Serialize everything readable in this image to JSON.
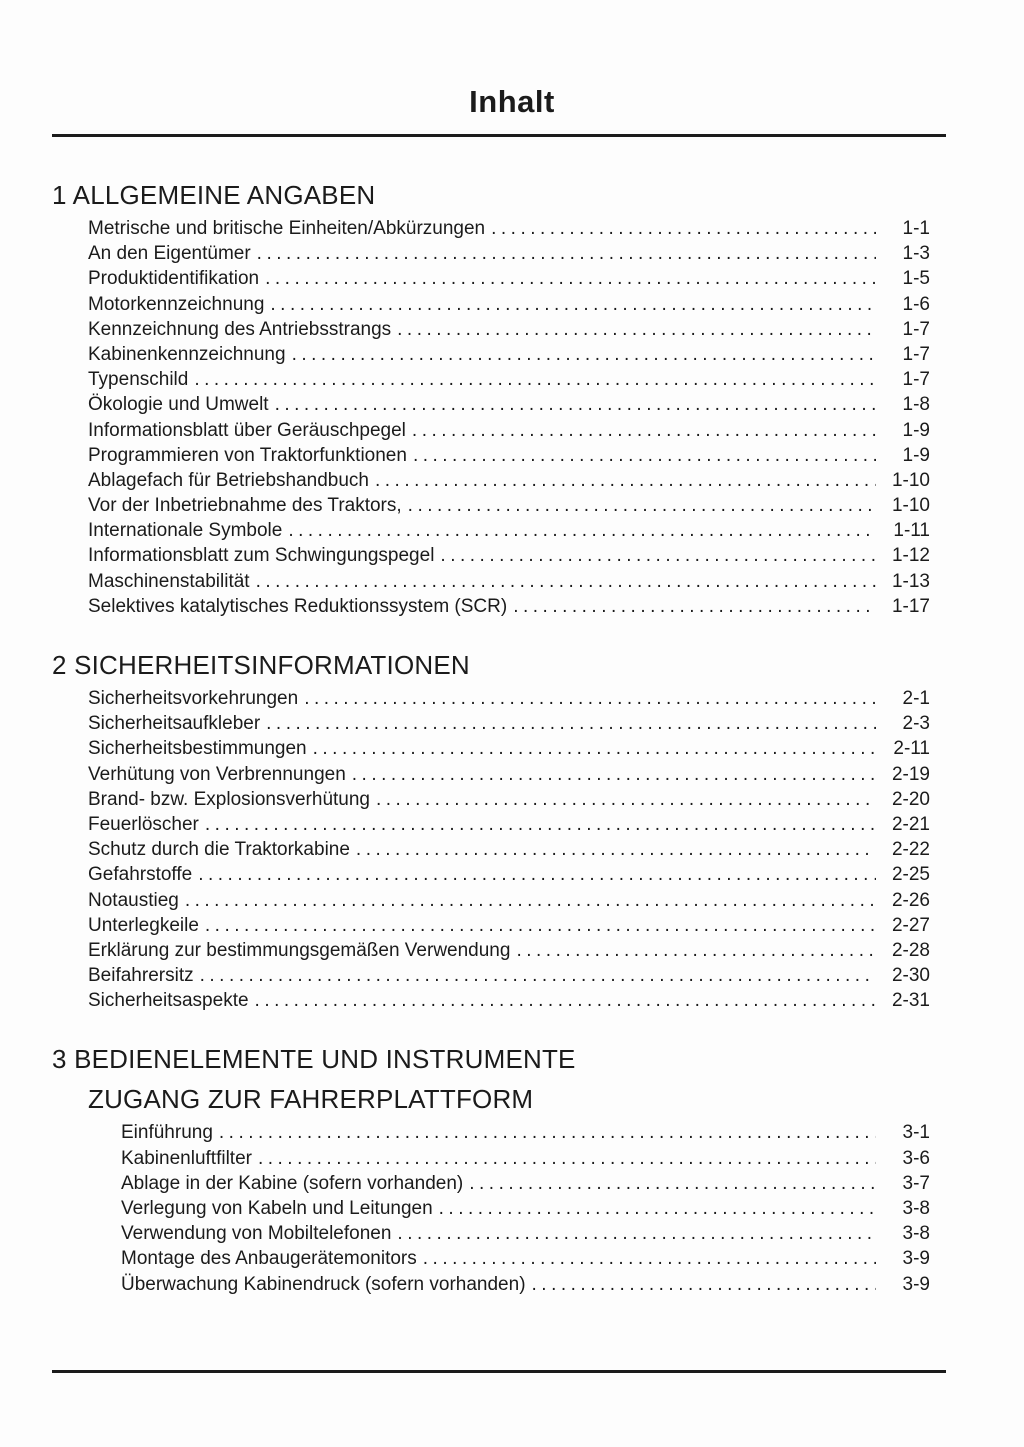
{
  "page": {
    "title": "Inhalt"
  },
  "colors": {
    "ink": "#1b1b1b",
    "paper": "#fdfdfd"
  },
  "sections": [
    {
      "heading": "1 ALLGEMEINE ANGABEN",
      "entries": [
        {
          "label": "Metrische und britische Einheiten/Abkürzungen",
          "page": "1-1"
        },
        {
          "label": "An den Eigentümer",
          "page": "1-3"
        },
        {
          "label": "Produktidentifikation",
          "page": "1-5"
        },
        {
          "label": "Motorkennzeichnung",
          "page": "1-6"
        },
        {
          "label": "Kennzeichnung des Antriebsstrangs",
          "page": "1-7"
        },
        {
          "label": "Kabinenkennzeichnung",
          "page": "1-7"
        },
        {
          "label": "Typenschild",
          "page": "1-7"
        },
        {
          "label": "Ökologie und Umwelt",
          "page": "1-8"
        },
        {
          "label": "Informationsblatt über Geräuschpegel",
          "page": "1-9"
        },
        {
          "label": "Programmieren von Traktorfunktionen",
          "page": "1-9"
        },
        {
          "label": "Ablagefach für Betriebshandbuch",
          "page": "1-10"
        },
        {
          "label": "Vor der Inbetriebnahme des Traktors,",
          "page": "1-10"
        },
        {
          "label": "Internationale Symbole",
          "page": "1-11"
        },
        {
          "label": "Informationsblatt zum Schwingungspegel",
          "page": "1-12"
        },
        {
          "label": "Maschinenstabilität",
          "page": "1-13"
        },
        {
          "label": "Selektives katalytisches Reduktionssystem (SCR)",
          "page": "1-17"
        }
      ]
    },
    {
      "heading": "2 SICHERHEITSINFORMATIONEN",
      "entries": [
        {
          "label": "Sicherheitsvorkehrungen",
          "page": "2-1"
        },
        {
          "label": "Sicherheitsaufkleber",
          "page": "2-3"
        },
        {
          "label": "Sicherheitsbestimmungen",
          "page": "2-11"
        },
        {
          "label": "Verhütung von Verbrennungen",
          "page": "2-19"
        },
        {
          "label": "Brand- bzw. Explosionsverhütung",
          "page": "2-20"
        },
        {
          "label": "Feuerlöscher",
          "page": "2-21"
        },
        {
          "label": "Schutz durch die Traktorkabine",
          "page": "2-22"
        },
        {
          "label": "Gefahrstoffe",
          "page": "2-25"
        },
        {
          "label": "Notaustieg",
          "page": "2-26"
        },
        {
          "label": "Unterlegkeile",
          "page": "2-27"
        },
        {
          "label": "Erklärung zur bestimmungsgemäßen Verwendung",
          "page": "2-28"
        },
        {
          "label": "Beifahrersitz",
          "page": "2-30"
        },
        {
          "label": "Sicherheitsaspekte",
          "page": "2-31"
        }
      ]
    },
    {
      "heading": "3 BEDIENELEMENTE UND INSTRUMENTE",
      "subheading": "ZUGANG ZUR FAHRERPLATTFORM",
      "entries": [
        {
          "label": "Einführung",
          "page": "3-1"
        },
        {
          "label": "Kabinenluftfilter",
          "page": "3-6"
        },
        {
          "label": "Ablage in der Kabine (sofern vorhanden)",
          "page": "3-7"
        },
        {
          "label": "Verlegung von Kabeln und Leitungen",
          "page": "3-8"
        },
        {
          "label": "Verwendung von Mobiltelefonen",
          "page": "3-8"
        },
        {
          "label": "Montage des Anbaugerätemonitors",
          "page": "3-9"
        },
        {
          "label": "Überwachung Kabinendruck (sofern vorhanden)",
          "page": "3-9"
        }
      ]
    }
  ]
}
